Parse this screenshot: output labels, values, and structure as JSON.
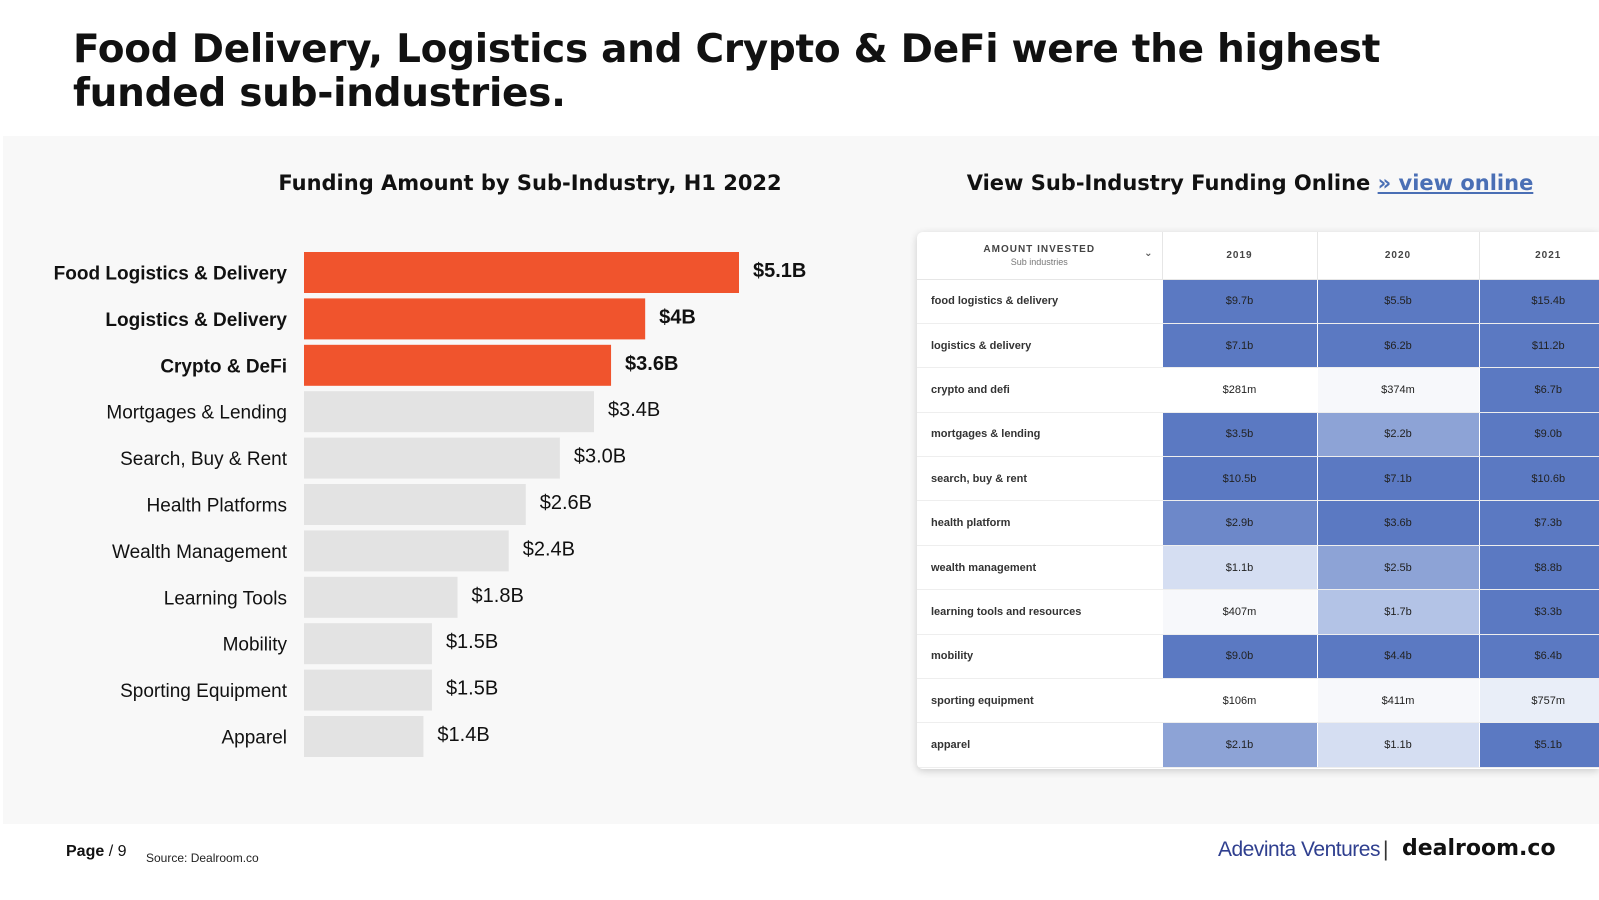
{
  "page_title": "Food Delivery, Logistics and Crypto & DeFi were the highest funded sub-industries.",
  "colors": {
    "highlight": "#f0542d",
    "neutral": "#e3e3e3",
    "link": "#4a6fb5"
  },
  "chart_data": {
    "type": "bar",
    "orientation": "horizontal",
    "title": "Funding Amount by Sub-Industry, H1 2022",
    "categories": [
      "Food Logistics & Delivery",
      "Logistics & Delivery",
      "Crypto & DeFi",
      "Mortgages & Lending",
      "Search, Buy & Rent",
      "Health Platforms",
      "Wealth Management",
      "Learning Tools",
      "Mobility",
      "Sporting Equipment",
      "Apparel"
    ],
    "values": [
      5.1,
      4.0,
      3.6,
      3.4,
      3.0,
      2.6,
      2.4,
      1.8,
      1.5,
      1.5,
      1.4
    ],
    "data_labels": [
      "$5.1B",
      "$4B",
      "$3.6B",
      "$3.4B",
      "$3.0B",
      "$2.6B",
      "$2.4B",
      "$1.8B",
      "$1.5B",
      "$1.5B",
      "$1.4B"
    ],
    "highlighted": [
      true,
      true,
      true,
      false,
      false,
      false,
      false,
      false,
      false,
      false,
      false
    ],
    "xlabel": "",
    "ylabel": "",
    "unit": "USD billions",
    "xlim": [
      0,
      5.1
    ],
    "grid": false
  },
  "online": {
    "title": "View Sub-Industry Funding Online",
    "link_text": "» view online"
  },
  "table": {
    "header_label": "AMOUNT INVESTED",
    "header_sub": "Sub industries",
    "years": [
      "2019",
      "2020",
      "2021"
    ],
    "rows": [
      {
        "label": "food logistics & delivery",
        "values": [
          "$9.7b",
          "$5.5b",
          "$15.4b"
        ]
      },
      {
        "label": "logistics & delivery",
        "values": [
          "$7.1b",
          "$6.2b",
          "$11.2b"
        ]
      },
      {
        "label": "crypto and defi",
        "values": [
          "$281m",
          "$374m",
          "$6.7b"
        ]
      },
      {
        "label": "mortgages & lending",
        "values": [
          "$3.5b",
          "$2.2b",
          "$9.0b"
        ]
      },
      {
        "label": "search, buy & rent",
        "values": [
          "$10.5b",
          "$7.1b",
          "$10.6b"
        ]
      },
      {
        "label": "health platform",
        "values": [
          "$2.9b",
          "$3.6b",
          "$7.3b"
        ]
      },
      {
        "label": "wealth management",
        "values": [
          "$1.1b",
          "$2.5b",
          "$8.8b"
        ]
      },
      {
        "label": "learning tools and resources",
        "values": [
          "$407m",
          "$1.7b",
          "$3.3b"
        ]
      },
      {
        "label": "mobility",
        "values": [
          "$9.0b",
          "$4.4b",
          "$6.4b"
        ]
      },
      {
        "label": "sporting equipment",
        "values": [
          "$106m",
          "$411m",
          "$757m"
        ]
      },
      {
        "label": "apparel",
        "values": [
          "$2.1b",
          "$1.1b",
          "$5.1b"
        ]
      }
    ]
  },
  "footer": {
    "page_label": "Page",
    "page_number": "/ 9",
    "source": "Source: Dealroom.co",
    "brand_1": "Adevinta Ventures",
    "separator": "|",
    "brand_2": "dealroom.co"
  }
}
